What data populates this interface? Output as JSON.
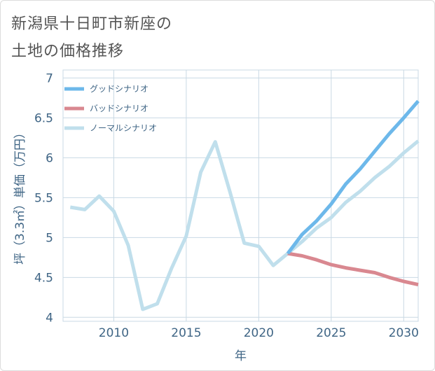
{
  "title_lines": [
    "新潟県十日町市新座の",
    "土地の価格推移"
  ],
  "chart_data": {
    "type": "line",
    "xlabel": "年",
    "ylabel": "坪（3.3㎡）単価（万円）",
    "xlim": [
      2006.5,
      2031
    ],
    "ylim": [
      3.95,
      7.1
    ],
    "x_ticks": [
      2010,
      2015,
      2020,
      2025,
      2030
    ],
    "y_ticks": [
      4,
      4.5,
      5,
      5.5,
      6,
      6.5,
      7
    ],
    "grid": true,
    "legend_position": "top-left",
    "series": [
      {
        "name": "ノーマルシナリオ",
        "color": "#c0dfec",
        "x": [
          2007,
          2008,
          2009,
          2010,
          2011,
          2012,
          2013,
          2014,
          2015,
          2016,
          2017,
          2018,
          2019,
          2020,
          2021,
          2022,
          2023,
          2024,
          2025,
          2026,
          2027,
          2028,
          2029,
          2030,
          2031
        ],
        "values": [
          5.38,
          5.35,
          5.52,
          5.33,
          4.9,
          4.1,
          4.17,
          4.62,
          5.02,
          5.82,
          6.2,
          5.58,
          4.93,
          4.89,
          4.65,
          4.8,
          4.95,
          5.12,
          5.25,
          5.44,
          5.58,
          5.75,
          5.89,
          6.06,
          6.21
        ]
      },
      {
        "name": "バッドシナリオ",
        "color": "#d98890",
        "x": [
          2022,
          2023,
          2024,
          2025,
          2026,
          2027,
          2028,
          2029,
          2030,
          2031
        ],
        "values": [
          4.8,
          4.77,
          4.72,
          4.66,
          4.62,
          4.59,
          4.56,
          4.5,
          4.45,
          4.41
        ]
      },
      {
        "name": "グッドシナリオ",
        "color": "#6db8ea",
        "x": [
          2022,
          2023,
          2024,
          2025,
          2026,
          2027,
          2028,
          2029,
          2030,
          2031
        ],
        "values": [
          4.8,
          5.04,
          5.21,
          5.42,
          5.67,
          5.86,
          6.08,
          6.3,
          6.5,
          6.71
        ]
      }
    ],
    "legend": [
      {
        "label": "グッドシナリオ",
        "color": "#6db8ea"
      },
      {
        "label": "バッドシナリオ",
        "color": "#d98890"
      },
      {
        "label": "ノーマルシナリオ",
        "color": "#c0dfec"
      }
    ]
  }
}
